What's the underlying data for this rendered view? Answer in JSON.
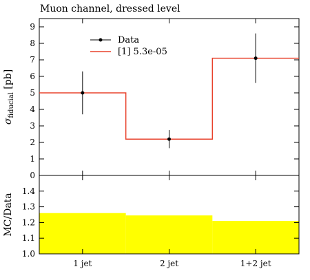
{
  "chart_data": {
    "type": "line",
    "title": "Muon channel, dressed level",
    "categories": [
      "1 jet",
      "2 jet",
      "1+2 jet"
    ],
    "main": {
      "ylabel_sym": "σ",
      "ylabel_sub": "fiducial",
      "ylabel_unit": " [pb]",
      "ylim": [
        0,
        9.5
      ],
      "yticks": [
        0,
        1,
        2,
        3,
        4,
        5,
        6,
        7,
        8,
        9
      ],
      "data": {
        "name": "Data",
        "values": [
          5.0,
          2.2,
          7.1
        ],
        "err_lo": [
          1.3,
          0.55,
          1.5
        ],
        "err_hi": [
          1.3,
          0.55,
          1.5
        ]
      },
      "mc": {
        "name": "[1] 5.3e-05",
        "color": "#e8422c",
        "values": [
          5.0,
          2.2,
          7.1
        ]
      }
    },
    "ratio": {
      "ylabel": "MC/Data",
      "ylim": [
        1.0,
        1.5
      ],
      "yticks": [
        1.0,
        1.1,
        1.2,
        1.3,
        1.4
      ],
      "band_color": "#ffff00",
      "band_values": [
        1.26,
        1.245,
        1.21
      ]
    },
    "legend_position": "top-left"
  }
}
